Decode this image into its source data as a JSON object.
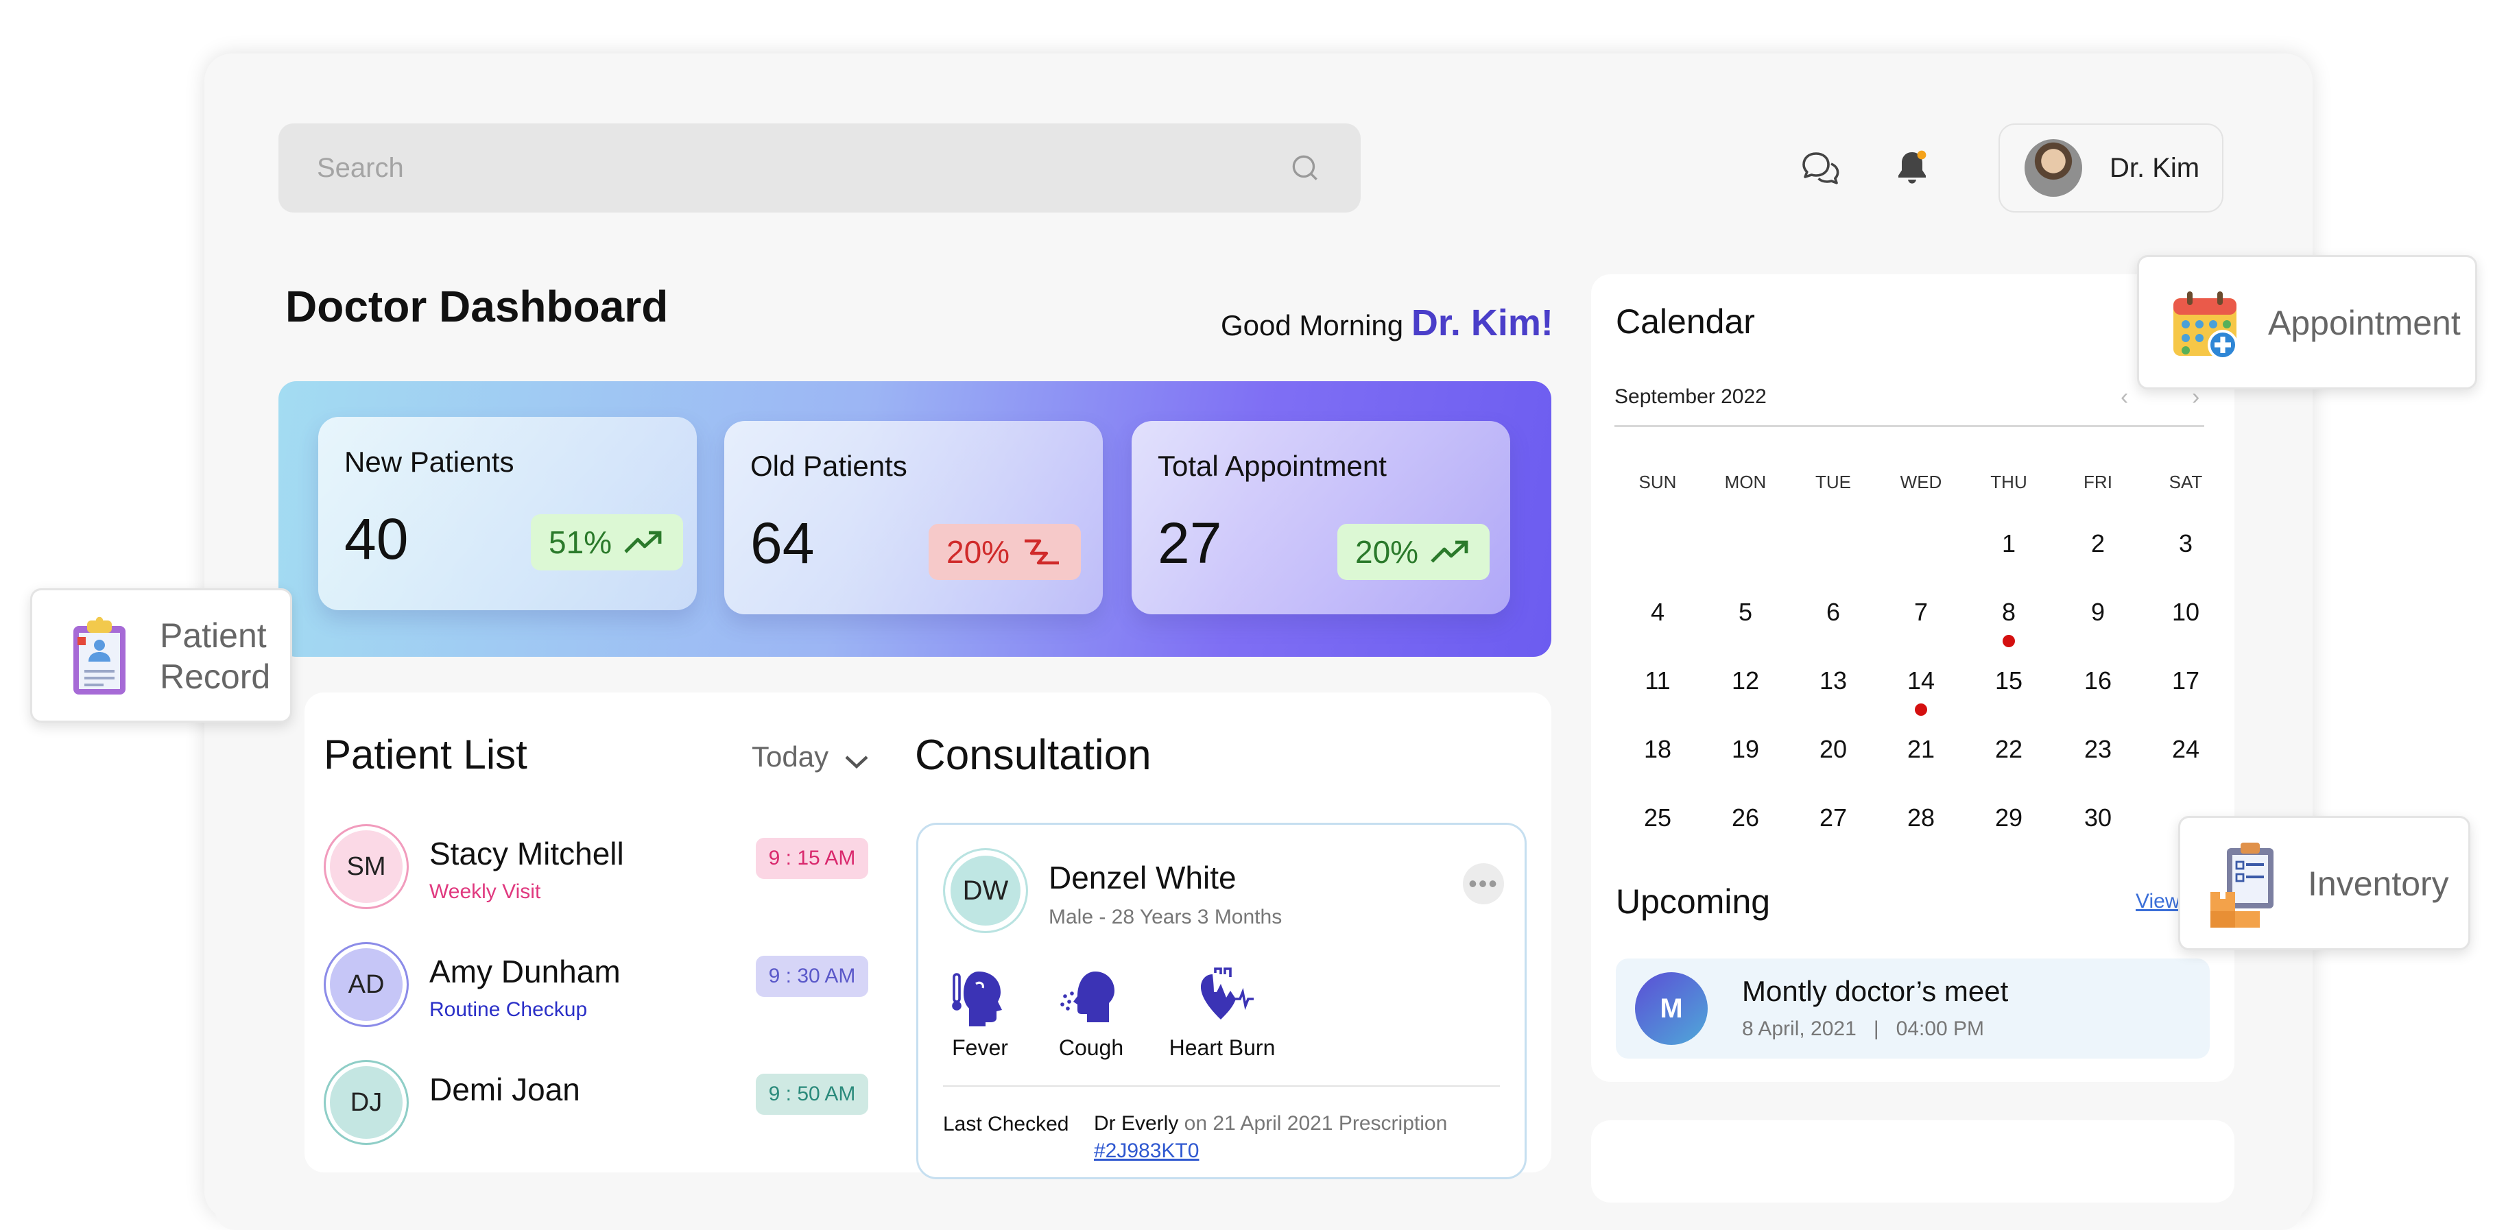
{
  "search": {
    "placeholder": "Search"
  },
  "topbar": {
    "chat_icon": "chat-bubbles-icon",
    "bell_icon": "bell-icon",
    "user_name": "Dr. Kim"
  },
  "header": {
    "title": "Doctor Dashboard",
    "greeting": "Good Morning",
    "greeting_name": "Dr. Kim!"
  },
  "stats": [
    {
      "label": "New Patients",
      "value": "40",
      "change": "51%",
      "trend": "up"
    },
    {
      "label": "Old Patients",
      "value": "64",
      "change": "20%",
      "trend": "down"
    },
    {
      "label": "Total Appointment",
      "value": "27",
      "change": "20%",
      "trend": "up"
    }
  ],
  "floating": {
    "patient_record": {
      "line1": "Patient",
      "line2": "Record"
    },
    "appointment": "Appointment",
    "inventory": "Inventory"
  },
  "patient_list": {
    "title": "Patient List",
    "filter": "Today",
    "patients": [
      {
        "initials": "SM",
        "name": "Stacy Mitchell",
        "visit": "Weekly Visit",
        "time": "9 : 15 AM",
        "color": "#e0397f"
      },
      {
        "initials": "AD",
        "name": "Amy Dunham",
        "visit": "Routine Checkup",
        "time": "9 : 30 AM",
        "color": "#2a2fc7"
      },
      {
        "initials": "DJ",
        "name": "Demi Joan",
        "visit": "",
        "time": "9 : 50 AM",
        "color": "#2a8a7b"
      }
    ]
  },
  "consultation": {
    "title": "Consultation",
    "patient_initials": "DW",
    "patient_name": "Denzel White",
    "patient_info": "Male - 28 Years 3 Months",
    "symptoms": [
      "Fever",
      "Cough",
      "Heart Burn"
    ],
    "last_checked_label": "Last Checked",
    "last_checked_doctor": "Dr Everly",
    "last_checked_detail": " on 21 April 2021 Prescription ",
    "prescription_id": "#2J983KT0"
  },
  "calendar": {
    "title": "Calendar",
    "month": "September 2022",
    "weekdays": [
      "SUN",
      "MON",
      "TUE",
      "WED",
      "THU",
      "FRI",
      "SAT"
    ],
    "weeks": [
      [
        "",
        "",
        "",
        "",
        "1",
        "2",
        "3"
      ],
      [
        "4",
        "5",
        "6",
        "7",
        "8",
        "9",
        "10"
      ],
      [
        "11",
        "12",
        "13",
        "14",
        "15",
        "16",
        "17"
      ],
      [
        "18",
        "19",
        "20",
        "21",
        "22",
        "23",
        "24"
      ],
      [
        "25",
        "26",
        "27",
        "28",
        "29",
        "30",
        ""
      ]
    ],
    "marked_days": [
      "8",
      "14"
    ],
    "accent_color": "#d40f0f"
  },
  "upcoming": {
    "title": "Upcoming",
    "view_all": "View",
    "event": {
      "initial": "M",
      "title": "Montly doctor’s meet",
      "date": "8 April, 2021",
      "separator": "|",
      "time": "04:00 PM"
    }
  },
  "colors": {
    "accent": "#4a3ec9",
    "up_green": "#2b7a2b",
    "down_red": "#d02a2a"
  }
}
